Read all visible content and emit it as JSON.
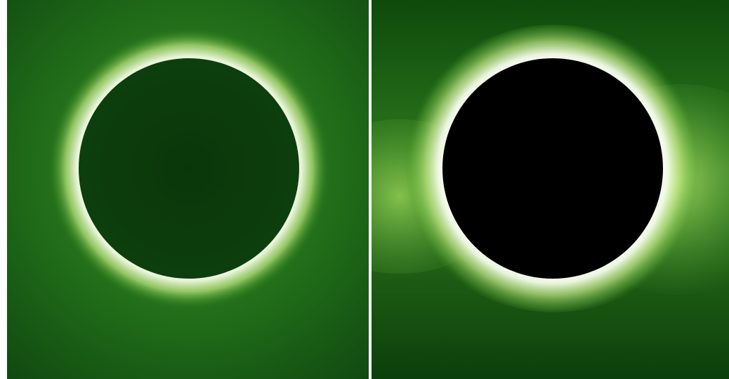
{
  "image": {
    "panels": [
      {
        "name": "left",
        "moon_color": "#0b3a0b",
        "sky_color": "#0f4a10",
        "corona_color": "#d8f0b0"
      },
      {
        "name": "right",
        "moon_color": "#000000",
        "sky_color": "#1a5a12",
        "corona_color": "#e8f7c8"
      }
    ],
    "divider_color": "#ffffff"
  }
}
